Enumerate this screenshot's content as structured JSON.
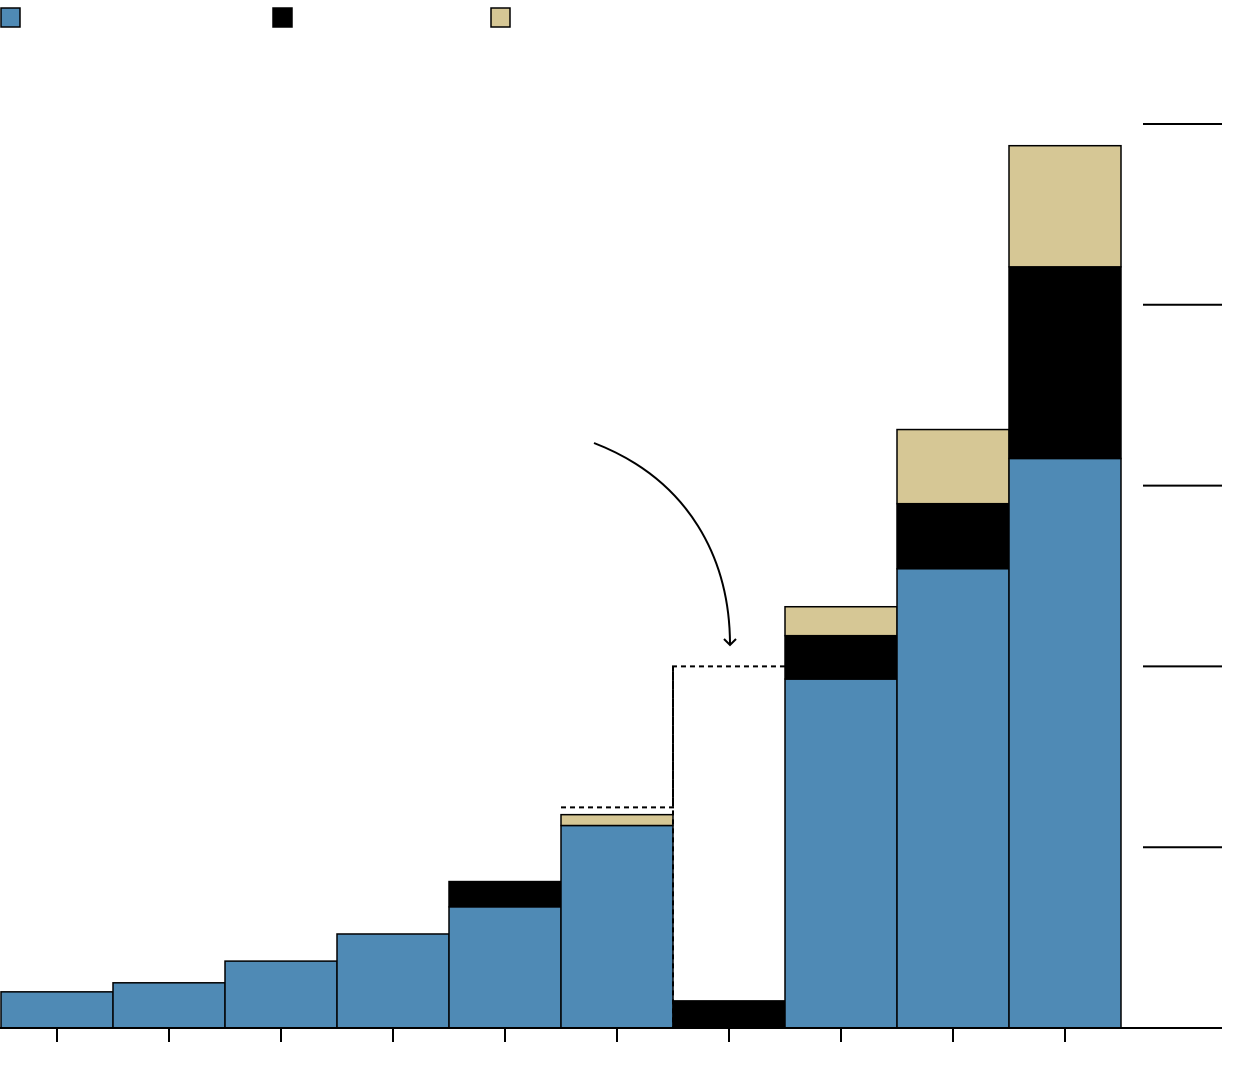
{
  "colors": {
    "series_blue": "#4f8ab5",
    "series_black": "#000000",
    "series_tan": "#d6c795",
    "outline": "#000000",
    "axis": "#000000"
  },
  "legend": {
    "placement": "top-left",
    "entries": [
      {
        "label": "",
        "color": "#4f8ab5"
      },
      {
        "label": "",
        "color": "#000000"
      },
      {
        "label": "",
        "color": "#d6c795"
      }
    ]
  },
  "chart_data": {
    "type": "bar",
    "stacked": true,
    "title": "",
    "xlabel": "",
    "ylabel": "",
    "y_axis_side": "right",
    "grid": false,
    "ylim": [
      0,
      5
    ],
    "yticks": [
      0,
      1,
      2,
      3,
      4,
      5
    ],
    "categories": [
      "",
      "",
      "",
      "",
      "",
      "",
      "",
      "",
      "",
      ""
    ],
    "series": [
      {
        "color": "#4f8ab5",
        "values": [
          0.2,
          0.25,
          0.37,
          0.52,
          0.67,
          1.12,
          0,
          1.93,
          2.54,
          3.15
        ]
      },
      {
        "color": "#000000",
        "values": [
          0,
          0,
          0,
          0,
          0.14,
          0,
          0.15,
          0.24,
          0.36,
          1.06
        ]
      },
      {
        "color": "#d6c795",
        "values": [
          0,
          0,
          0,
          0,
          0,
          0.06,
          0,
          0.16,
          0.41,
          0.67
        ]
      }
    ],
    "dashed_outline": {
      "description_shown": "none",
      "segments": [
        {
          "category_index": 5,
          "value": 1.22
        },
        {
          "category_index": 6,
          "value": 2.0
        }
      ]
    },
    "annotation": {
      "text": "",
      "points_to_category_index": 6
    }
  }
}
